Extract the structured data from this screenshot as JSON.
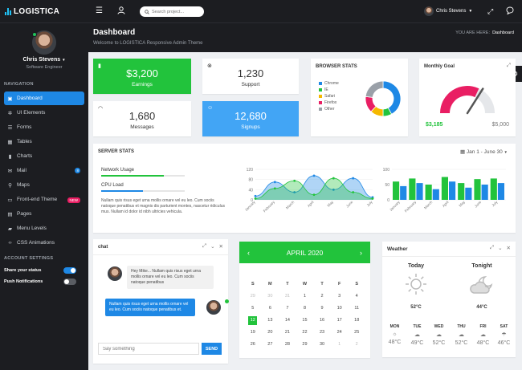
{
  "brand": {
    "name": "LOGISTICA"
  },
  "search": {
    "placeholder": "Search project..."
  },
  "user": {
    "name": "Chris Stevens",
    "role": "Software Engineer"
  },
  "page": {
    "title": "Dashboard",
    "subtitle": "Welcome to LOGISTICA Responsive Admin Theme",
    "crumb_label": "YOU ARE HERE:",
    "crumb_current": "Dashboard"
  },
  "nav": {
    "section": "NAVIGATION",
    "items": [
      "Dashboard",
      "UI Elements",
      "Forms",
      "Tables",
      "Charts",
      "Mail",
      "Maps",
      "Front-end Theme",
      "Pages",
      "Menu Levels",
      "CSS Animations"
    ],
    "mail_badge": "8",
    "theme_badge": "NEW"
  },
  "settings": {
    "section": "ACCOUNT SETTINGS",
    "share": "Share your status",
    "push": "Push Notifications",
    "share_on": true,
    "push_on": false
  },
  "stats": {
    "earnings_value": "$3,200",
    "earnings_label": "Earnings",
    "support_value": "1,230",
    "support_label": "Support",
    "messages_value": "1,680",
    "messages_label": "Messages",
    "signups_value": "12,680",
    "signups_label": "Signups"
  },
  "browser": {
    "title": "BROWSER STATS",
    "items": [
      "Chrome",
      "IE",
      "Safari",
      "Firefox",
      "Other"
    ],
    "colors": [
      "#1e88e5",
      "#22c33c",
      "#f5b800",
      "#e91e63",
      "#9aa0a8"
    ],
    "shares": [
      0.42,
      0.08,
      0.12,
      0.15,
      0.23
    ]
  },
  "goal": {
    "title": "Monthly Goal",
    "current": "$3,185",
    "target": "$5,000",
    "fraction": 0.64
  },
  "server": {
    "title": "SERVER STATS",
    "range": "Jan 1 - June 30",
    "net_label": "Network Usage",
    "net_pct": 0.75,
    "cpu_label": "CPU Load",
    "cpu_pct": 0.5,
    "desc": "Nullam quis risus eget urna mollis ornare vel eu leo. Cum sociis natoque penatibus et magnis dis parturient montes, nascetur ridiculus mus. Nullam id dolor id nibh ultricies vehicula."
  },
  "chart_data": [
    {
      "type": "area",
      "categories": [
        "January",
        "February",
        "March",
        "April",
        "May",
        "June",
        "July"
      ],
      "yticks": [
        "120",
        "80",
        "40",
        "0"
      ],
      "ylim": [
        0,
        120
      ],
      "series": [
        {
          "values": [
            15,
            70,
            30,
            95,
            40,
            85,
            10
          ],
          "color": "#1e88e5"
        },
        {
          "values": [
            5,
            45,
            75,
            20,
            85,
            30,
            5
          ],
          "color": "#22c33c"
        }
      ]
    },
    {
      "type": "bar",
      "categories": [
        "January",
        "February",
        "March",
        "April",
        "May",
        "June",
        "July"
      ],
      "yticks": [
        "100",
        "50",
        "0"
      ],
      "ylim": [
        0,
        100
      ],
      "series": [
        {
          "values": [
            60,
            70,
            50,
            75,
            55,
            68,
            70
          ],
          "color": "#22c33c"
        },
        {
          "values": [
            45,
            55,
            35,
            60,
            40,
            50,
            55
          ],
          "color": "#1e88e5"
        }
      ]
    }
  ],
  "chat": {
    "title": "chat",
    "msg1": "Hey Mike... Nullam quis risus eget urna mollis ornare vel eu leo. Cum sociis natoque penatibus",
    "msg2": "Nullam quis risus eget urna mollis ornare vel eu leo. Cum sociis natoque penatibus et.",
    "placeholder": "Say something",
    "send": "SEND"
  },
  "calendar": {
    "month": "APRIL 2020",
    "prev": "‹",
    "next": "›",
    "days": [
      "S",
      "M",
      "T",
      "W",
      "T",
      "F",
      "S"
    ],
    "dates": [
      "29",
      "30",
      "31",
      "1",
      "2",
      "3",
      "4",
      "5",
      "6",
      "7",
      "8",
      "9",
      "10",
      "11",
      "12",
      "13",
      "14",
      "15",
      "16",
      "17",
      "18",
      "19",
      "20",
      "21",
      "22",
      "23",
      "24",
      "25",
      "26",
      "27",
      "28",
      "29",
      "30",
      "1",
      "2"
    ],
    "muted": [
      0,
      1,
      2,
      33,
      34
    ],
    "selected": 14
  },
  "weather": {
    "title": "Weather",
    "today": "Today",
    "tonight": "Tonight",
    "today_temp": "52°C",
    "tonight_temp": "44°C",
    "days": [
      {
        "d": "MON",
        "t": "48°C"
      },
      {
        "d": "TUE",
        "t": "49°C"
      },
      {
        "d": "WED",
        "t": "52°C"
      },
      {
        "d": "THU",
        "t": "52°C"
      },
      {
        "d": "FRI",
        "t": "48°C"
      },
      {
        "d": "SAT",
        "t": "46°C"
      }
    ]
  }
}
